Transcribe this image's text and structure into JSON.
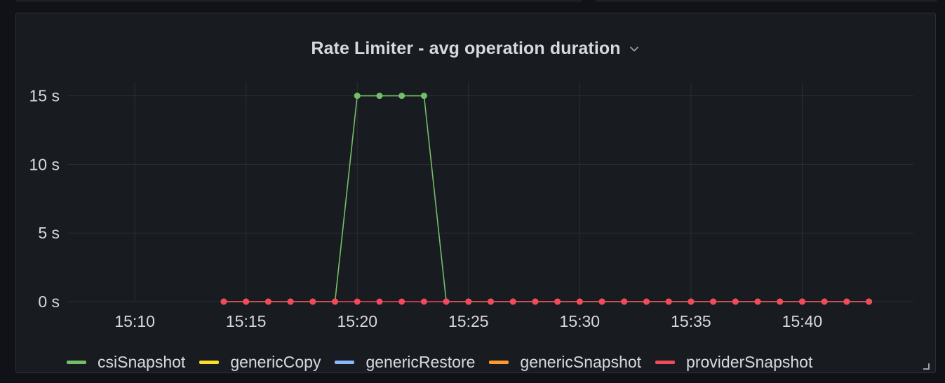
{
  "panel": {
    "title": "Rate Limiter - avg operation duration"
  },
  "colors": {
    "csiSnapshot": "#73bf69",
    "genericCopy": "#fade2a",
    "genericRestore": "#8ab8ff",
    "genericSnapshot": "#ff9830",
    "providerSnapshot": "#f2495c",
    "grid": "#2b2d33",
    "tick": "#d8d9e0"
  },
  "icons": {
    "title_menu": "chevron-down-icon",
    "resize": "resize-handle-icon"
  },
  "chart_data": {
    "type": "line",
    "title": "Rate Limiter - avg operation duration",
    "xlabel": "",
    "ylabel": "",
    "xlim": [
      "15:07",
      "15:45"
    ],
    "ylim": [
      0,
      16
    ],
    "x_ticks": [
      "15:10",
      "15:15",
      "15:20",
      "15:25",
      "15:30",
      "15:35",
      "15:40"
    ],
    "y_ticks": [
      {
        "value": 0,
        "label": "0 s"
      },
      {
        "value": 5,
        "label": "5 s"
      },
      {
        "value": 10,
        "label": "10 s"
      },
      {
        "value": 15,
        "label": "15 s"
      }
    ],
    "grid": true,
    "legend": "bottom",
    "series": [
      {
        "name": "csiSnapshot",
        "color": "#73bf69",
        "points": [
          [
            "15:14",
            0
          ],
          [
            "15:15",
            0
          ],
          [
            "15:16",
            0
          ],
          [
            "15:17",
            0
          ],
          [
            "15:18",
            0
          ],
          [
            "15:19",
            0
          ],
          [
            "15:20",
            15
          ],
          [
            "15:21",
            15
          ],
          [
            "15:22",
            15
          ],
          [
            "15:23",
            15
          ],
          [
            "15:24",
            0
          ],
          [
            "15:25",
            0
          ],
          [
            "15:26",
            0
          ],
          [
            "15:27",
            0
          ],
          [
            "15:28",
            0
          ],
          [
            "15:29",
            0
          ],
          [
            "15:30",
            0
          ],
          [
            "15:31",
            0
          ],
          [
            "15:32",
            0
          ],
          [
            "15:33",
            0
          ],
          [
            "15:34",
            0
          ],
          [
            "15:35",
            0
          ],
          [
            "15:36",
            0
          ],
          [
            "15:37",
            0
          ],
          [
            "15:38",
            0
          ],
          [
            "15:39",
            0
          ],
          [
            "15:40",
            0
          ],
          [
            "15:41",
            0
          ],
          [
            "15:42",
            0
          ],
          [
            "15:43",
            0
          ]
        ]
      },
      {
        "name": "genericCopy",
        "color": "#fade2a",
        "points": []
      },
      {
        "name": "genericRestore",
        "color": "#8ab8ff",
        "points": []
      },
      {
        "name": "genericSnapshot",
        "color": "#ff9830",
        "points": []
      },
      {
        "name": "providerSnapshot",
        "color": "#f2495c",
        "points": [
          [
            "15:14",
            0
          ],
          [
            "15:15",
            0
          ],
          [
            "15:16",
            0
          ],
          [
            "15:17",
            0
          ],
          [
            "15:18",
            0
          ],
          [
            "15:19",
            0
          ],
          [
            "15:20",
            0
          ],
          [
            "15:21",
            0
          ],
          [
            "15:22",
            0
          ],
          [
            "15:23",
            0
          ],
          [
            "15:24",
            0
          ],
          [
            "15:25",
            0
          ],
          [
            "15:26",
            0
          ],
          [
            "15:27",
            0
          ],
          [
            "15:28",
            0
          ],
          [
            "15:29",
            0
          ],
          [
            "15:30",
            0
          ],
          [
            "15:31",
            0
          ],
          [
            "15:32",
            0
          ],
          [
            "15:33",
            0
          ],
          [
            "15:34",
            0
          ],
          [
            "15:35",
            0
          ],
          [
            "15:36",
            0
          ],
          [
            "15:37",
            0
          ],
          [
            "15:38",
            0
          ],
          [
            "15:39",
            0
          ],
          [
            "15:40",
            0
          ],
          [
            "15:41",
            0
          ],
          [
            "15:42",
            0
          ],
          [
            "15:43",
            0
          ]
        ]
      }
    ]
  }
}
